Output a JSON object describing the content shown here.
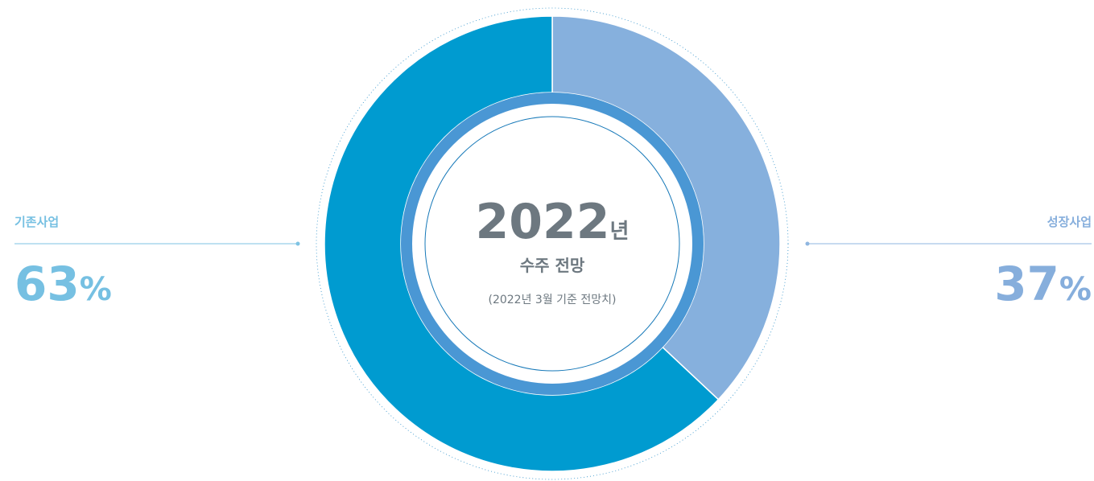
{
  "chart_data": {
    "type": "pie",
    "center_title": "2022년",
    "center_subtitle": "수주 전망",
    "center_note": "(2022년 3월 기준 전망치)",
    "categories": [
      "기존사업",
      "성장사업"
    ],
    "values": [
      63,
      37
    ],
    "value_labels": [
      "63%",
      "37%"
    ],
    "colors": [
      "#009bd0",
      "#86b0dd"
    ]
  }
}
